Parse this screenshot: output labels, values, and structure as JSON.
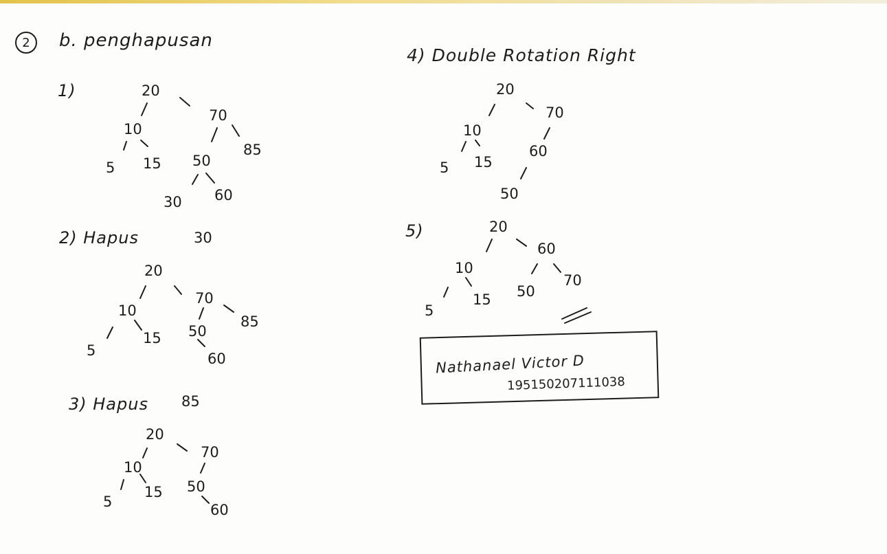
{
  "header": {
    "number": "2",
    "title": "b. penghapusan"
  },
  "sections": [
    {
      "label": "1)"
    },
    {
      "label": "2) Hapus",
      "value": "30"
    },
    {
      "label": "3) Hapus",
      "value": "85"
    },
    {
      "label": "4) Double Rotation Right"
    },
    {
      "label": "5)"
    }
  ],
  "trees": [
    {
      "nodes": [
        "20",
        "10",
        "70",
        "5",
        "15",
        "50",
        "85",
        "30",
        "60"
      ]
    },
    {
      "nodes": [
        "20",
        "10",
        "70",
        "5",
        "15",
        "50",
        "85",
        "60"
      ]
    },
    {
      "nodes": [
        "20",
        "10",
        "70",
        "5",
        "15",
        "50",
        "60"
      ]
    },
    {
      "nodes": [
        "20",
        "10",
        "70",
        "5",
        "15",
        "60",
        "50"
      ]
    },
    {
      "nodes": [
        "20",
        "10",
        "60",
        "5",
        "15",
        "50",
        "70"
      ]
    }
  ],
  "end_mark": "//",
  "signature": {
    "name": "Nathanael Victor D",
    "nim": "195150207111038"
  }
}
